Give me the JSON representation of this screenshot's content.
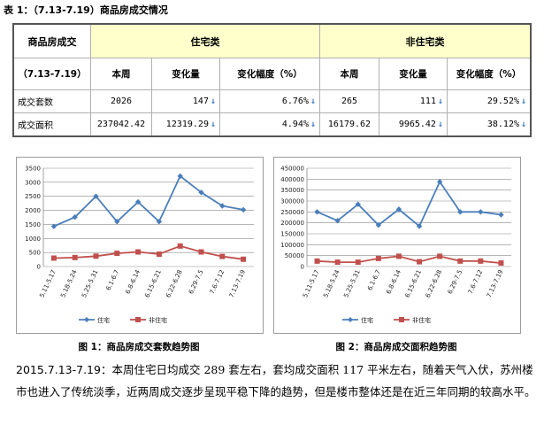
{
  "doc": {
    "title": "表 1：（7.13-7.19）商品房成交情况"
  },
  "table": {
    "corner_label": "商品房成交",
    "period_label": "（7.13-7.19）",
    "group_residential": "住宅类",
    "group_nonresidential": "非住宅类",
    "subheaders": [
      "本周",
      "变化量",
      "变化幅度（%）",
      "本周",
      "变化量",
      "变化幅度（%）"
    ],
    "rows": [
      {
        "label": "成交套数",
        "cells": [
          "2026",
          "147",
          "6.76%",
          "265",
          "111",
          "29.52%"
        ]
      },
      {
        "label": "成交面积",
        "cells": [
          "237042.42",
          "12319.29",
          "4.94%",
          "16179.62",
          "9965.42",
          "38.12%"
        ]
      }
    ],
    "arrow_glyph": "↓"
  },
  "chart_data": [
    {
      "type": "line",
      "categories": [
        "5.11-5.17",
        "5.18-5.24",
        "5.25-5.31",
        "6.1-6.7",
        "6.8-6.14",
        "6.15-6.21",
        "6.22-6.28",
        "6.29-7.5",
        "7.6-7.12",
        "7.13-7.19"
      ],
      "series": [
        {
          "name": "住宅",
          "color": "#4a7ebb",
          "values": [
            1430,
            1760,
            2500,
            1600,
            2300,
            1600,
            3220,
            2640,
            2160,
            2020
          ]
        },
        {
          "name": "非住宅",
          "color": "#c0504d",
          "values": [
            300,
            320,
            370,
            470,
            520,
            440,
            730,
            520,
            360,
            260
          ]
        }
      ],
      "ylim": [
        0,
        3500
      ],
      "yticks": [
        0,
        500,
        1000,
        1500,
        2000,
        2500,
        3000,
        3500
      ],
      "ytick_labels": [
        "0",
        "500",
        "1000",
        "1500",
        "2000",
        "2500",
        "3000",
        "3500"
      ],
      "legend": "bottom",
      "caption": "图 1：商品房成交套数趋势图"
    },
    {
      "type": "line",
      "categories": [
        "5.11-5.17",
        "5.18-5.24",
        "5.25-5.31",
        "6.1-6.7",
        "6.8-6.14",
        "6.15-6.21",
        "6.22-6.28",
        "6.29-7.5",
        "7.6-7.12",
        "7.13-7.19"
      ],
      "series": [
        {
          "name": "住宅",
          "color": "#4a7ebb",
          "values": [
            250000,
            210000,
            285000,
            190000,
            262000,
            185000,
            388000,
            250000,
            250000,
            237000
          ]
        },
        {
          "name": "非住宅",
          "color": "#c0504d",
          "values": [
            25000,
            20000,
            20000,
            37000,
            47000,
            22000,
            47000,
            25000,
            25000,
            16000
          ]
        }
      ],
      "ylim": [
        0,
        450000
      ],
      "yticks": [
        0,
        50000,
        100000,
        150000,
        200000,
        250000,
        300000,
        350000,
        400000,
        450000
      ],
      "ytick_labels": [
        "0",
        "50000",
        "100000",
        "150000",
        "200000",
        "250000",
        "300000",
        "350000",
        "400000",
        "450000"
      ],
      "legend": "bottom",
      "caption": "图 2：商品房成交面积趋势图"
    }
  ],
  "paragraph": {
    "date_prefix": "2015.7.13-7.19：",
    "text": "本周住宅日均成交 289 套左右，套均成交面积 117 平米左右，随着天气入伏，苏州楼市也进入了传统淡季，近两周成交逐步呈现平稳下降的趋势，但是楼市整体还是在近三年同期的较高水平。"
  }
}
